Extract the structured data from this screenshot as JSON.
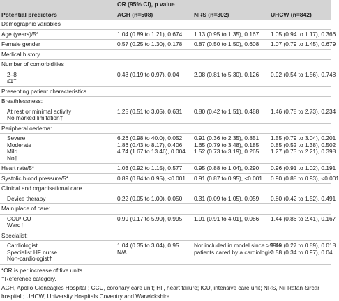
{
  "header": {
    "group": "OR (95% CI), p value",
    "columns": [
      "Potential predictors",
      "AGH (n=508)",
      "NRS (n=302)",
      "UHCW (n=842)"
    ]
  },
  "rows": [
    [
      [
        "Demographic variables"
      ]
    ],
    [
      [
        "Age (years)/5*"
      ],
      [
        "1.04 (0.89 to 1.21), 0.674"
      ],
      [
        "1.13 (0.95 to 1.35), 0.167"
      ],
      [
        "1.05 (0.94 to 1.17), 0.366"
      ]
    ],
    [
      [
        "Female gender"
      ],
      [
        "0.57 (0.25 to 1.30), 0.178"
      ],
      [
        "0.87 (0.50 to 1.50), 0.608"
      ],
      [
        "1.07 (0.79 to 1.45), 0.679"
      ]
    ],
    [
      [
        "Medical history"
      ]
    ],
    [
      [
        "Number of comorbidities"
      ]
    ],
    [
      [
        "2–8",
        "≤1†"
      ],
      [
        "0.43 (0.19 to 0.97), 0.04"
      ],
      [
        "2.08 (0.81 to 5.30), 0.126"
      ],
      [
        "0.92 (0.54 to 1.56), 0.748"
      ]
    ],
    [
      [
        "Presenting patient characteristics"
      ]
    ],
    [
      [
        "Breathlessness:"
      ]
    ],
    [
      [
        "At rest or minimal activity",
        "No marked limitation†"
      ],
      [
        "1.25 (0.51 to 3.05), 0.631"
      ],
      [
        "0.80 (0.42 to 1.51), 0.488"
      ],
      [
        "1.46 (0.78 to 2.73), 0.234"
      ]
    ],
    [
      [
        "Peripheral oedema:"
      ]
    ],
    [
      [
        "Severe",
        "Moderate",
        "Mild",
        "No†"
      ],
      [
        "6.26 (0.98 to 40.0), 0.052",
        "1.86 (0.43 to 8.17), 0.406",
        "4.74 (1.67 to 13.46), 0.004"
      ],
      [
        "0.91 (0.36 to 2.35), 0.851",
        "1.65 (0.79 to 3.48), 0.185",
        "1.52 (0.73 to 3.19), 0.265"
      ],
      [
        "1.55 (0.79 to 3.04), 0.201",
        "0.85 (0.52 to 1.38), 0.502",
        "1.27 (0.73 to 2.21), 0.398"
      ]
    ],
    [
      [
        "Heart rate/5*"
      ],
      [
        "1.03 (0.92 to 1.15), 0.577"
      ],
      [
        "0.95 (0.88 to 1.04), 0.290"
      ],
      [
        "0.96 (0.91 to 1.02), 0.191"
      ]
    ],
    [
      [
        "Systolic blood pressure/5*"
      ],
      [
        "0.89 (0.84 to 0.95), <0.001"
      ],
      [
        "0.91 (0.87 to 0.95), <0.001"
      ],
      [
        "0.90 (0.88 to 0.93), <0.001"
      ]
    ],
    [
      [
        "Clinical and organisational care"
      ]
    ],
    [
      [
        "Device therapy"
      ],
      [
        "0.22 (0.05 to 1.00), 0.050"
      ],
      [
        "0.31 (0.09 to 1.05), 0.059"
      ],
      [
        "0.80 (0.42 to 1.52), 0.491"
      ]
    ],
    [
      [
        "Main place of care:"
      ]
    ],
    [
      [
        "CCU/ICU",
        "Ward†"
      ],
      [
        "0.99 (0.17 to 5.90), 0.995"
      ],
      [
        "1.91 (0.91 to 4.01), 0.086"
      ],
      [
        "1.44 (0.86 to 2.41), 0.167"
      ]
    ],
    [
      [
        "Specialist:"
      ]
    ],
    [
      [
        "Cardiologist",
        "Specialist HF nurse",
        "Non-cardiologist†"
      ],
      [
        "1.04 (0.35 to 3.04), 0.95",
        "N/A"
      ],
      [
        "Not included in model since >99%",
        "patients cared by a cardiologist"
      ],
      [
        "0.49 (0.27 to 0.89), 0.018",
        "0.58 (0.34 to 0.97), 0.04"
      ]
    ]
  ],
  "footnotes": [
    "*OR is per increase of five units.",
    "†Reference category.",
    "AGH, Apollo Gleneagles Hospital ; CCU, coronary care unit; HF, heart failure; ICU, intensive care unit; NRS, Nil Ratan Sircar hospital ; UHCW, University Hospitals Coventry and Warwickshire ."
  ]
}
